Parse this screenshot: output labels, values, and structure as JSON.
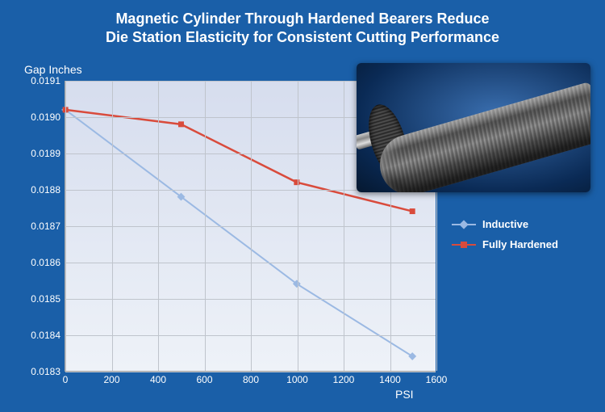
{
  "title_line1": "Magnetic Cylinder Through Hardened Bearers Reduce",
  "title_line2": "Die Station Elasticity for Consistent Cutting Performance",
  "chart": {
    "type": "line",
    "y_axis_title": "Gap Inches",
    "x_axis_title": "PSI",
    "background_gradient_top": "#d6ddee",
    "background_gradient_bottom": "#eef2f8",
    "grid_color": "#bfc4cc",
    "axis_color": "#a8a8a8",
    "tick_label_color": "#ffffff",
    "tick_fontsize": 12,
    "xlim": [
      0,
      1600
    ],
    "xticks": [
      0,
      200,
      400,
      600,
      800,
      1000,
      1200,
      1400,
      1600
    ],
    "ylim": [
      0.0183,
      0.0191
    ],
    "yticks": [
      "0.0183",
      "0.0184",
      "0.0185",
      "0.0186",
      "0.0187",
      "0.0188",
      "0.0189",
      "0.0190",
      "0.0191"
    ],
    "ytick_values": [
      0.0183,
      0.0184,
      0.0185,
      0.0186,
      0.0187,
      0.0188,
      0.0189,
      0.019,
      0.0191
    ],
    "series": [
      {
        "name": "Inductive",
        "label": "Inductive",
        "color": "#9bb9e3",
        "line_width": 2,
        "marker": "diamond",
        "marker_size": 7,
        "x": [
          0,
          500,
          1000,
          1500
        ],
        "y": [
          0.01902,
          0.01878,
          0.01854,
          0.01834
        ]
      },
      {
        "name": "Fully Hardened",
        "label": "Fully Hardened",
        "color": "#d94b3c",
        "line_width": 2.5,
        "marker": "square",
        "marker_size": 7,
        "x": [
          0,
          500,
          1000,
          1500
        ],
        "y": [
          0.01902,
          0.01898,
          0.01882,
          0.01874
        ]
      }
    ]
  },
  "legend": {
    "position": "right",
    "font_color": "#ffffff",
    "font_weight": "bold",
    "fontsize": 13
  },
  "page_background": "#1a5fa8",
  "cylinder_image": {
    "description": "magnetic-cylinder-photo",
    "border_radius": 6
  }
}
